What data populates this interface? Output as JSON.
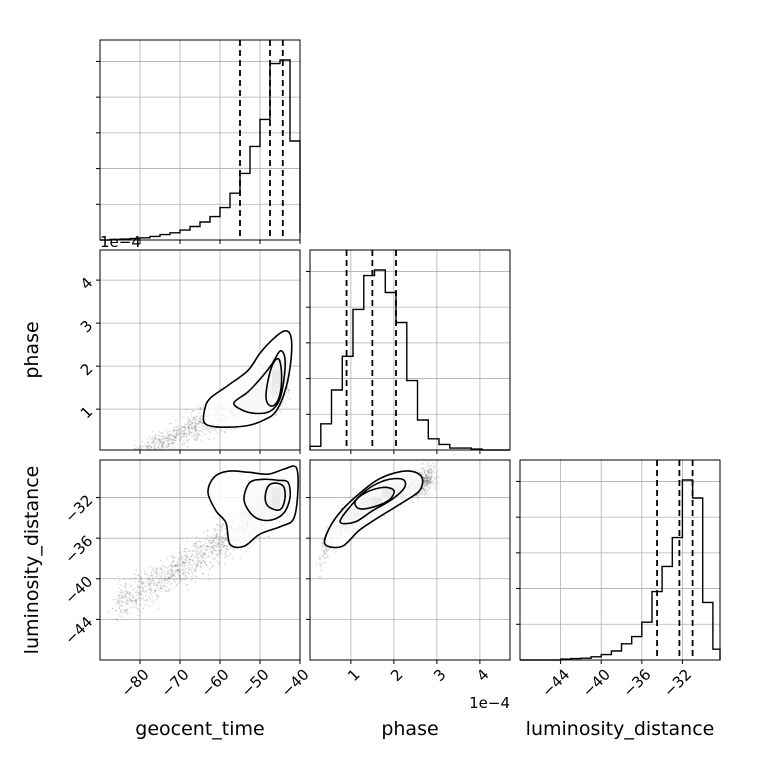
{
  "chart_data": {
    "type": "corner",
    "parameters": [
      "geocent_time",
      "phase",
      "luminosity_distance"
    ],
    "scale_factor_labels": {
      "geocent_time_hist": "1e−4",
      "phase_x": "1e−4"
    },
    "axis_ranges": {
      "geocent_time": [
        -90,
        -40
      ],
      "phase": [
        0.05,
        4.7
      ],
      "luminosity_distance": [
        -48,
        -28.3
      ]
    },
    "ticks": {
      "geocent_time": [
        {
          "v": -80,
          "label": "−80"
        },
        {
          "v": -70,
          "label": "−70"
        },
        {
          "v": -60,
          "label": "−60"
        },
        {
          "v": -50,
          "label": "−50"
        },
        {
          "v": -40,
          "label": "−40"
        }
      ],
      "phase": [
        {
          "v": 1,
          "label": "1"
        },
        {
          "v": 2,
          "label": "2"
        },
        {
          "v": 3,
          "label": "3"
        },
        {
          "v": 4,
          "label": "4"
        }
      ],
      "luminosity_distance": [
        {
          "v": -44,
          "label": "−44"
        },
        {
          "v": -40,
          "label": "−40"
        },
        {
          "v": -36,
          "label": "−36"
        },
        {
          "v": -32,
          "label": "−32"
        }
      ]
    },
    "histograms": {
      "geocent_time": {
        "edges": [
          -90,
          -87.5,
          -85,
          -82.5,
          -80,
          -77.5,
          -75,
          -72.5,
          -70,
          -67.5,
          -65,
          -62.5,
          -60,
          -57.5,
          -55,
          -52.5,
          -50,
          -47.5,
          -45,
          -42.5,
          -40
        ],
        "counts": [
          0,
          0.3,
          0.5,
          0.8,
          1.2,
          2,
          3,
          4,
          5.5,
          7.5,
          10,
          13,
          18,
          26,
          37,
          52,
          67,
          98,
          100,
          55,
          4
        ],
        "quantiles": [
          -55,
          -47.5,
          -44.3
        ]
      },
      "phase": {
        "edges": [
          0.05,
          0.3,
          0.55,
          0.8,
          1.05,
          1.3,
          1.55,
          1.8,
          2.05,
          2.3,
          2.55,
          2.8,
          3.05,
          3.3,
          3.55,
          3.8,
          4.05,
          4.3,
          4.55,
          4.7
        ],
        "counts": [
          2,
          14,
          32,
          50,
          75,
          93,
          96,
          84,
          68,
          37,
          16,
          6,
          3,
          1,
          1,
          0.5,
          0,
          0,
          0
        ],
        "quantiles": [
          0.9,
          1.5,
          2.05
        ]
      },
      "luminosity_distance": {
        "edges": [
          -48,
          -47,
          -46,
          -45,
          -44,
          -43,
          -42,
          -41,
          -40,
          -39,
          -38,
          -37,
          -36,
          -35,
          -34,
          -33,
          -32,
          -31,
          -30,
          -29,
          -28.3
        ],
        "counts": [
          0,
          0,
          0,
          0,
          0.5,
          0.8,
          1,
          1.8,
          3,
          5,
          9,
          13,
          21,
          38,
          52,
          68,
          100,
          90,
          32,
          6,
          0
        ],
        "quantiles": [
          -34.5,
          -32.3,
          -31
        ]
      }
    },
    "contours": {
      "phase_vs_geocent_time": [
        [
          [
            -64,
            0.7
          ],
          [
            -63.8,
            1.0
          ],
          [
            -62.5,
            1.25
          ],
          [
            -58,
            1.55
          ],
          [
            -53,
            1.9
          ],
          [
            -50,
            2.3
          ],
          [
            -46.5,
            2.65
          ],
          [
            -43.8,
            2.82
          ],
          [
            -42.3,
            2.7
          ],
          [
            -42.2,
            2.2
          ],
          [
            -43.5,
            1.5
          ],
          [
            -46,
            0.95
          ],
          [
            -49,
            0.75
          ],
          [
            -53,
            0.62
          ],
          [
            -58,
            0.58
          ],
          [
            -62,
            0.6
          ]
        ],
        [
          [
            -56.5,
            1.15
          ],
          [
            -53,
            1.4
          ],
          [
            -49.5,
            1.75
          ],
          [
            -47,
            2.05
          ],
          [
            -45,
            2.35
          ],
          [
            -43.8,
            2.2
          ],
          [
            -44,
            1.7
          ],
          [
            -45.2,
            1.2
          ],
          [
            -47.5,
            0.95
          ],
          [
            -51,
            0.9
          ],
          [
            -54.5,
            0.98
          ]
        ],
        [
          [
            -48.5,
            1.3
          ],
          [
            -47.8,
            1.75
          ],
          [
            -46.5,
            2.1
          ],
          [
            -45.2,
            2.15
          ],
          [
            -44.6,
            1.8
          ],
          [
            -45,
            1.35
          ],
          [
            -46.3,
            1.1
          ],
          [
            -47.8,
            1.1
          ]
        ]
      ],
      "luminosity_distance_vs_geocent_time": [
        [
          [
            -63,
            -31.5
          ],
          [
            -61.5,
            -30
          ],
          [
            -58,
            -29.4
          ],
          [
            -53,
            -29.5
          ],
          [
            -48,
            -29.7
          ],
          [
            -44,
            -29.2
          ],
          [
            -41,
            -29
          ],
          [
            -40.5,
            -31
          ],
          [
            -41.5,
            -34
          ],
          [
            -44.5,
            -34.8
          ],
          [
            -50,
            -35.6
          ],
          [
            -54,
            -36.8
          ],
          [
            -57.5,
            -36.6
          ],
          [
            -58.5,
            -34.5
          ],
          [
            -61,
            -33.3
          ]
        ],
        [
          [
            -54,
            -32
          ],
          [
            -52.5,
            -30.5
          ],
          [
            -49,
            -30.2
          ],
          [
            -45.5,
            -30.3
          ],
          [
            -43,
            -30.5
          ],
          [
            -42.5,
            -32
          ],
          [
            -44,
            -33.5
          ],
          [
            -47,
            -34.2
          ],
          [
            -50.5,
            -34.1
          ],
          [
            -53,
            -33.2
          ]
        ],
        [
          [
            -48.5,
            -31.4
          ],
          [
            -47.5,
            -30.7
          ],
          [
            -45.5,
            -30.6
          ],
          [
            -44,
            -31
          ],
          [
            -43.8,
            -32.2
          ],
          [
            -45,
            -33.2
          ],
          [
            -47.5,
            -33
          ],
          [
            -48.6,
            -32.4
          ]
        ]
      ],
      "luminosity_distance_vs_phase": [
        [
          [
            0.4,
            -36.6
          ],
          [
            0.5,
            -35
          ],
          [
            0.8,
            -33.2
          ],
          [
            1.2,
            -31.6
          ],
          [
            1.6,
            -30.3
          ],
          [
            2.0,
            -29.6
          ],
          [
            2.4,
            -29.4
          ],
          [
            2.65,
            -30
          ],
          [
            2.6,
            -31.3
          ],
          [
            2.2,
            -32.5
          ],
          [
            1.7,
            -33.8
          ],
          [
            1.2,
            -35.2
          ],
          [
            0.8,
            -36.8
          ]
        ],
        [
          [
            0.75,
            -34.4
          ],
          [
            1.0,
            -32.8
          ],
          [
            1.35,
            -31.3
          ],
          [
            1.8,
            -30.3
          ],
          [
            2.2,
            -30.2
          ],
          [
            2.25,
            -31
          ],
          [
            1.95,
            -32.2
          ],
          [
            1.5,
            -33.3
          ],
          [
            1.1,
            -34.4
          ]
        ],
        [
          [
            1.1,
            -32.4
          ],
          [
            1.35,
            -31.5
          ],
          [
            1.75,
            -31
          ],
          [
            2.0,
            -31.3
          ],
          [
            1.9,
            -32.2
          ],
          [
            1.55,
            -32.9
          ],
          [
            1.2,
            -33.1
          ]
        ]
      ]
    },
    "density_cells": {
      "phase_vs_geocent_time": [
        {
          "x": -48,
          "y": 1.75,
          "w": 0.0
        },
        {
          "x": -46,
          "y": 1.75,
          "w": 1.0
        },
        {
          "x": -46,
          "y": 1.45,
          "w": 0.7
        },
        {
          "x": -46,
          "y": 2.05,
          "w": 0.45
        },
        {
          "x": -48,
          "y": 1.45,
          "w": 0.3
        },
        {
          "x": -44,
          "y": 1.75,
          "w": 0.35
        },
        {
          "x": -44,
          "y": 2.05,
          "w": 0.25
        },
        {
          "x": -50,
          "y": 1.45,
          "w": 0.15
        }
      ],
      "luminosity_distance_vs_geocent_time": [
        {
          "x": -46,
          "y": -31.5,
          "w": 0.85
        },
        {
          "x": -46,
          "y": -32.5,
          "w": 1.0
        },
        {
          "x": -48,
          "y": -32.5,
          "w": 0.45
        },
        {
          "x": -44,
          "y": -31.5,
          "w": 0.4
        },
        {
          "x": -48,
          "y": -31.5,
          "w": 0.35
        },
        {
          "x": -52,
          "y": -33.5,
          "w": 0.25
        },
        {
          "x": -54,
          "y": -33.5,
          "w": 0.15
        }
      ],
      "luminosity_distance_vs_phase": [
        {
          "x": 1.6,
          "y": -32.5,
          "w": 1.0
        },
        {
          "x": 1.85,
          "y": -31.5,
          "w": 0.9
        },
        {
          "x": 1.35,
          "y": -32.5,
          "w": 0.5
        },
        {
          "x": 2.1,
          "y": -31.5,
          "w": 0.45
        },
        {
          "x": 0.9,
          "y": -33.5,
          "w": 0.3
        },
        {
          "x": 1.1,
          "y": -33.5,
          "w": 0.35
        }
      ]
    }
  }
}
